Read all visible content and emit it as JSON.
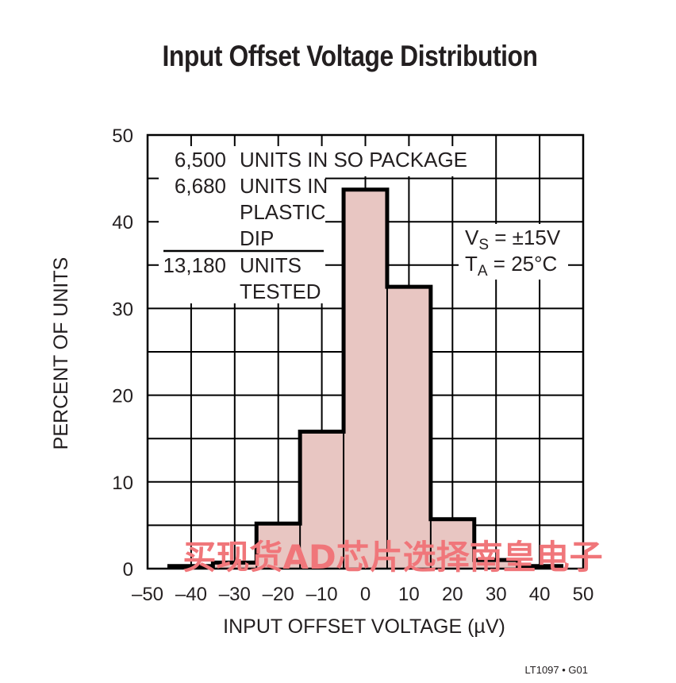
{
  "chart_data": {
    "type": "bar",
    "title": "Input Offset Voltage Distribution",
    "xlabel": "INPUT OFFSET VOLTAGE (µV)",
    "ylabel": "PERCENT OF UNITS",
    "xlim": [
      -50,
      50
    ],
    "ylim": [
      0,
      50
    ],
    "x_ticks": [
      -50,
      -40,
      -30,
      -20,
      -10,
      0,
      10,
      20,
      30,
      40,
      50
    ],
    "x_tick_labels": [
      "–50",
      "–40",
      "–30",
      "–20",
      "–10",
      "0",
      "10",
      "20",
      "30",
      "40",
      "50"
    ],
    "y_ticks": [
      0,
      10,
      20,
      30,
      40,
      50
    ],
    "y_tick_labels": [
      "0",
      "10",
      "20",
      "30",
      "40",
      "50"
    ],
    "grid": true,
    "bin_edges": [
      -45,
      -35,
      -25,
      -15,
      -5,
      5,
      15,
      25,
      35,
      45
    ],
    "values": [
      0.3,
      0.7,
      5.2,
      15.8,
      43.7,
      32.5,
      5.7,
      1.0,
      0.3
    ],
    "bar_color": "#e8c6c2",
    "outline_color": "#000000"
  },
  "annotations": {
    "units_lines": [
      {
        "num": "6,500",
        "text": "UNITS IN SO PACKAGE"
      },
      {
        "num": "6,680",
        "text": "UNITS IN"
      },
      {
        "num": "",
        "text": "PLASTIC"
      },
      {
        "num": "",
        "text": "DIP"
      },
      {
        "num": "13,180",
        "text": "UNITS"
      },
      {
        "num": "",
        "text": "TESTED"
      }
    ],
    "vs_main": "V",
    "vs_sub": "S",
    "vs_rest": " = ±15V",
    "ta_main": "T",
    "ta_sub": "A",
    "ta_rest": " = 25°C"
  },
  "figure_code": "LT1097 • G01",
  "watermark": "买现货AD芯片选择南皇电子"
}
